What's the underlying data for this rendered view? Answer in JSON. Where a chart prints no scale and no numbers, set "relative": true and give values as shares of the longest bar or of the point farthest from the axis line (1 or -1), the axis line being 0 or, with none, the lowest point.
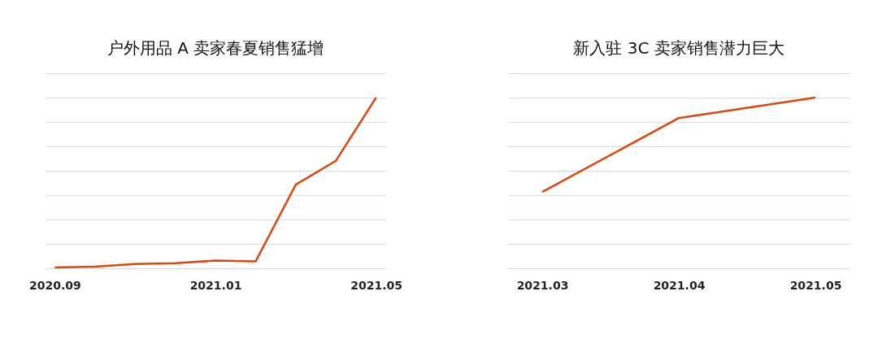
{
  "chart_data": [
    {
      "type": "line",
      "title": "户外用品 A 卖家春夏销售猛增",
      "categories": [
        "2020.09",
        null,
        null,
        null,
        "2021.01",
        null,
        null,
        null,
        "2021.05"
      ],
      "relative": true,
      "grid": "y",
      "series": [
        {
          "color": "#d9480f",
          "values": [
            0.005,
            0.01,
            0.025,
            0.03,
            0.045,
            0.04,
            0.49,
            0.63,
            1
          ]
        }
      ]
    },
    {
      "type": "line",
      "title": "新入驻 3C 卖家销售潜力巨大",
      "categories": [
        "2021.03",
        "2021.04",
        "2021.05"
      ],
      "relative": true,
      "grid": "y",
      "series": [
        {
          "color": "#d9480f",
          "values": [
            0.447,
            0.88,
            1
          ]
        }
      ]
    }
  ]
}
